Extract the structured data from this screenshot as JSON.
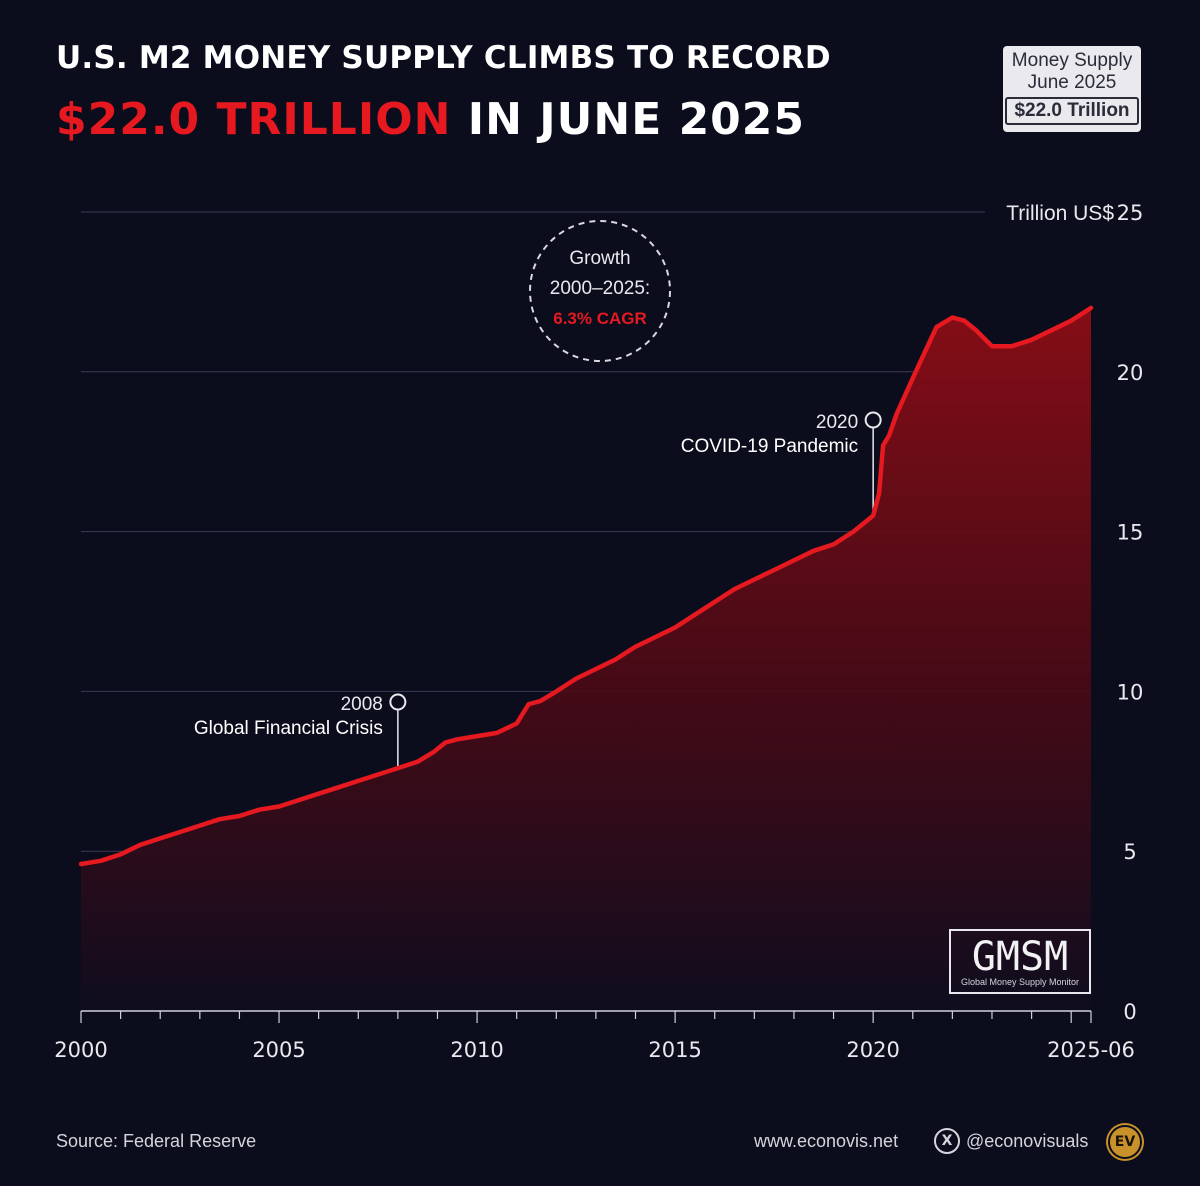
{
  "header": {
    "title_line1": "U.S. M2 MONEY SUPPLY CLIMBS TO RECORD",
    "title_accent": "$22.0 TRILLION",
    "title_rest": " IN JUNE 2025"
  },
  "badge": {
    "line1": "Money Supply",
    "line2": "June 2025",
    "value": "$22.0 Trillion"
  },
  "chart_data": {
    "type": "area",
    "ylabel": "Trillion US$",
    "xlim": [
      2000,
      2025.5
    ],
    "ylim": [
      0,
      25
    ],
    "y_ticks": [
      0,
      5,
      10,
      15,
      20,
      25
    ],
    "x_ticks": [
      {
        "value": 2000,
        "label": "2000"
      },
      {
        "value": 2005,
        "label": "2005"
      },
      {
        "value": 2010,
        "label": "2010"
      },
      {
        "value": 2015,
        "label": "2015"
      },
      {
        "value": 2020,
        "label": "2020"
      },
      {
        "value": 2025.5,
        "label": "2025-06"
      }
    ],
    "grid": true,
    "line_color": "#e5191f",
    "series": [
      {
        "name": "M2",
        "x": [
          2000,
          2000.5,
          2001,
          2001.5,
          2002,
          2002.5,
          2003,
          2003.5,
          2004,
          2004.5,
          2005,
          2005.5,
          2006,
          2006.5,
          2007,
          2007.5,
          2008,
          2008.5,
          2008.9,
          2009.2,
          2009.5,
          2010,
          2010.5,
          2011,
          2011.3,
          2011.6,
          2012,
          2012.5,
          2013,
          2013.5,
          2014,
          2014.5,
          2015,
          2015.5,
          2016,
          2016.5,
          2017,
          2017.5,
          2018,
          2018.5,
          2019,
          2019.5,
          2020,
          2020.15,
          2020.25,
          2020.4,
          2020.6,
          2021,
          2021.3,
          2021.6,
          2022,
          2022.3,
          2022.6,
          2023,
          2023.5,
          2024,
          2024.5,
          2025,
          2025.5
        ],
        "y": [
          4.6,
          4.7,
          4.9,
          5.2,
          5.4,
          5.6,
          5.8,
          6.0,
          6.1,
          6.3,
          6.4,
          6.6,
          6.8,
          7.0,
          7.2,
          7.4,
          7.6,
          7.8,
          8.1,
          8.4,
          8.5,
          8.6,
          8.7,
          9.0,
          9.6,
          9.7,
          10.0,
          10.4,
          10.7,
          11.0,
          11.4,
          11.7,
          12.0,
          12.4,
          12.8,
          13.2,
          13.5,
          13.8,
          14.1,
          14.4,
          14.6,
          15.0,
          15.5,
          16.2,
          17.7,
          18.0,
          18.7,
          19.8,
          20.6,
          21.4,
          21.7,
          21.6,
          21.3,
          20.8,
          20.8,
          21.0,
          21.3,
          21.6,
          22.0
        ]
      }
    ],
    "annotations": [
      {
        "year_label": "2008",
        "text": "Global Financial Crisis",
        "x": 2008,
        "y": 7.6
      },
      {
        "year_label": "2020",
        "text": "COVID-19 Pandemic",
        "x": 2020,
        "y": 15.5
      }
    ],
    "growth_badge": {
      "line1": "Growth",
      "line2": "2000–2025:",
      "accent": "6.3% CAGR"
    }
  },
  "logo": {
    "main": "GMSM",
    "sub": "Global Money Supply Monitor"
  },
  "footer": {
    "source": "Source: Federal Reserve",
    "site": "www.econovis.net",
    "x_icon_glyph": "X",
    "handle": "@econovisuals",
    "ev_glyph": "EV"
  }
}
